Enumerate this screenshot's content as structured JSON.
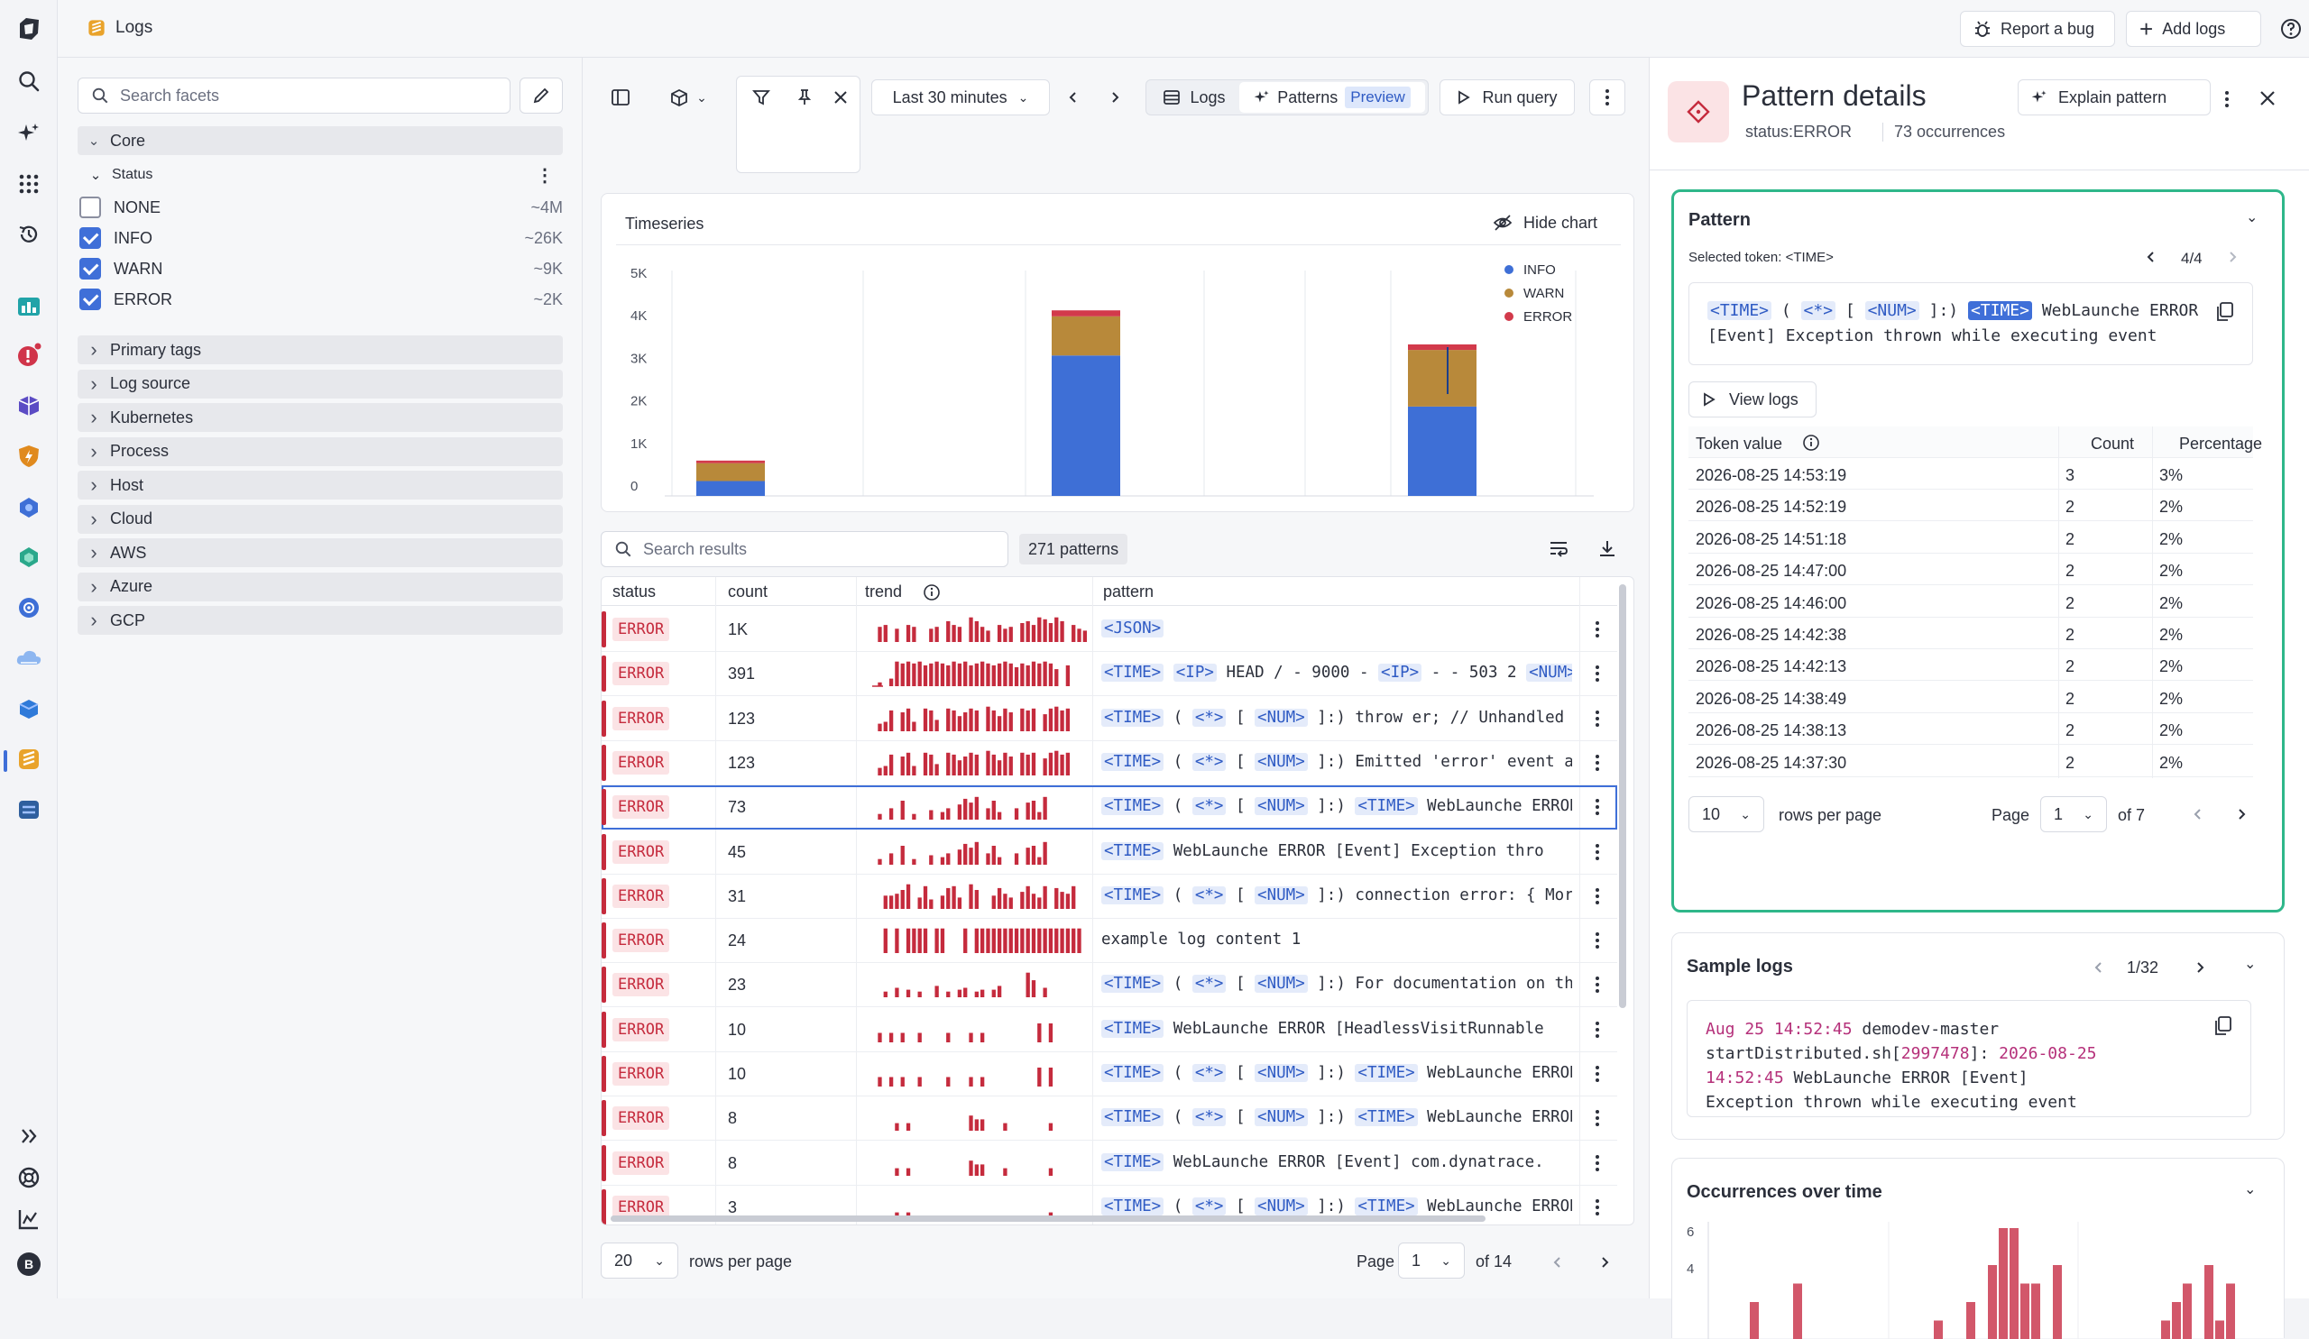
{
  "app": {
    "title": "Logs"
  },
  "topbar": {
    "report_bug": "Report a bug",
    "add_logs": "Add logs"
  },
  "facets": {
    "search_placeholder": "Search facets",
    "core_label": "Core",
    "status_label": "Status",
    "status_items": [
      {
        "label": "NONE",
        "count": "~4M",
        "checked": false
      },
      {
        "label": "INFO",
        "count": "~26K",
        "checked": true
      },
      {
        "label": "WARN",
        "count": "~9K",
        "checked": true
      },
      {
        "label": "ERROR",
        "count": "~2K",
        "checked": true
      }
    ],
    "groups": [
      "Primary tags",
      "Log source",
      "Kubernetes",
      "Process",
      "Host",
      "Cloud",
      "AWS",
      "Azure",
      "GCP"
    ]
  },
  "toolbar": {
    "timeframe": "Last 30 minutes",
    "tab_logs": "Logs",
    "tab_patterns": "Patterns",
    "preview_badge": "Preview",
    "run_query": "Run query"
  },
  "timeseries": {
    "title": "Timeseries",
    "hide_chart": "Hide chart"
  },
  "chart_data": {
    "type": "bar",
    "stacked": true,
    "ylim": [
      0,
      5000
    ],
    "yticks": [
      "5K",
      "4K",
      "3K",
      "2K",
      "1K",
      "0"
    ],
    "grid": true,
    "legend_position": "top-right",
    "series": [
      {
        "name": "INFO",
        "color": "#3e6fd6",
        "values": [
          350,
          3300,
          2100
        ]
      },
      {
        "name": "WARN",
        "color": "#b8893a",
        "values": [
          420,
          920,
          1330
        ]
      },
      {
        "name": "ERROR",
        "color": "#d23a4b",
        "values": [
          60,
          140,
          130
        ]
      }
    ]
  },
  "results": {
    "search_placeholder": "Search results",
    "pattern_count": "271 patterns",
    "columns": {
      "status": "status",
      "count": "count",
      "trend": "trend",
      "pattern": "pattern"
    },
    "rows": [
      {
        "status": "ERROR",
        "count": "1K",
        "tokens": [
          [
            "t",
            "<JSON>"
          ]
        ],
        "trend": [
          0,
          8,
          9,
          0,
          7,
          0,
          9,
          8,
          0,
          0,
          7,
          8,
          0,
          11,
          9,
          8,
          0,
          13,
          11,
          8,
          6,
          0,
          9,
          7,
          8,
          0,
          10,
          11,
          9,
          13,
          12,
          10,
          13,
          11,
          0,
          9,
          7,
          6
        ]
      },
      {
        "status": "ERROR",
        "count": "391",
        "tokens": [
          [
            "t",
            "<TIME>"
          ],
          [
            "s",
            " "
          ],
          [
            "t",
            "<IP>"
          ],
          [
            "s",
            " HEAD / - 9000 - "
          ],
          [
            "t",
            "<IP>"
          ],
          [
            "s",
            " - - 503 2 "
          ],
          [
            "t",
            "<NUM>"
          ]
        ],
        "trend": [
          0,
          2,
          0,
          4,
          13,
          12,
          13,
          12,
          13,
          11,
          12,
          13,
          12,
          11,
          13,
          12,
          13,
          11,
          12,
          13,
          12,
          11,
          12,
          13,
          12,
          10,
          12,
          11,
          13,
          12,
          13,
          12,
          9,
          0,
          11,
          0,
          0,
          0
        ]
      },
      {
        "status": "ERROR",
        "count": "123",
        "tokens": [
          [
            "t",
            "<TIME>"
          ],
          [
            "s",
            " ( "
          ],
          [
            "t",
            "<*>"
          ],
          [
            "s",
            " [ "
          ],
          [
            "t",
            "<NUM>"
          ],
          [
            "s",
            " ]:) throw er; // Unhandled"
          ]
        ],
        "trend": [
          0,
          4,
          5,
          11,
          0,
          10,
          12,
          5,
          0,
          12,
          11,
          6,
          0,
          12,
          11,
          8,
          10,
          12,
          11,
          0,
          13,
          11,
          8,
          12,
          10,
          0,
          12,
          11,
          12,
          0,
          9,
          12,
          13,
          11,
          12,
          0,
          0,
          0
        ]
      },
      {
        "status": "ERROR",
        "count": "123",
        "tokens": [
          [
            "t",
            "<TIME>"
          ],
          [
            "s",
            " ( "
          ],
          [
            "t",
            "<*>"
          ],
          [
            "s",
            " [ "
          ],
          [
            "t",
            "<NUM>"
          ],
          [
            "s",
            " ]:) Emitted 'error' event a"
          ]
        ],
        "trend": [
          0,
          4,
          5,
          11,
          0,
          10,
          12,
          5,
          0,
          12,
          11,
          6,
          0,
          12,
          11,
          8,
          10,
          12,
          11,
          0,
          13,
          11,
          8,
          12,
          10,
          0,
          12,
          11,
          12,
          0,
          9,
          12,
          13,
          11,
          12,
          0,
          0,
          0
        ]
      },
      {
        "status": "ERROR",
        "count": "73",
        "selected": true,
        "tokens": [
          [
            "t",
            "<TIME>"
          ],
          [
            "s",
            " ( "
          ],
          [
            "t",
            "<*>"
          ],
          [
            "s",
            " [ "
          ],
          [
            "t",
            "<NUM>"
          ],
          [
            "s",
            " ]:) "
          ],
          [
            "t",
            "<TIME>"
          ],
          [
            "s",
            " WebLaunche ERROR"
          ]
        ],
        "trend": [
          0,
          3,
          0,
          6,
          0,
          10,
          0,
          3,
          0,
          0,
          5,
          0,
          4,
          6,
          0,
          8,
          11,
          9,
          12,
          0,
          6,
          10,
          4,
          0,
          0,
          6,
          0,
          9,
          10,
          4,
          12,
          0,
          0,
          0,
          0,
          0,
          0,
          0
        ]
      },
      {
        "status": "ERROR",
        "count": "45",
        "tokens": [
          [
            "t",
            "<TIME>"
          ],
          [
            "s",
            " WebLaunche ERROR [Event] Exception thro"
          ]
        ],
        "trend": [
          0,
          3,
          0,
          6,
          0,
          10,
          0,
          3,
          0,
          0,
          5,
          0,
          4,
          6,
          0,
          8,
          11,
          9,
          12,
          0,
          6,
          10,
          4,
          0,
          0,
          6,
          0,
          9,
          10,
          4,
          12,
          0,
          0,
          0,
          0,
          0,
          0,
          0
        ]
      },
      {
        "status": "ERROR",
        "count": "31",
        "tokens": [
          [
            "t",
            "<TIME>"
          ],
          [
            "s",
            " ( "
          ],
          [
            "t",
            "<*>"
          ],
          [
            "s",
            " [ "
          ],
          [
            "t",
            "<NUM>"
          ],
          [
            "s",
            " ]:) connection error: { Mor"
          ]
        ],
        "trend": [
          0,
          0,
          7,
          7,
          8,
          10,
          13,
          0,
          6,
          12,
          5,
          0,
          7,
          11,
          12,
          6,
          0,
          13,
          10,
          0,
          0,
          7,
          11,
          8,
          6,
          0,
          9,
          12,
          8,
          6,
          12,
          0,
          11,
          9,
          8,
          12,
          0,
          0
        ]
      },
      {
        "status": "ERROR",
        "count": "24",
        "tokens": [
          [
            "s",
            "example log content 1"
          ]
        ],
        "trend": [
          0,
          0,
          13,
          0,
          13,
          0,
          13,
          13,
          13,
          13,
          0,
          13,
          13,
          0,
          0,
          0,
          13,
          0,
          13,
          13,
          13,
          13,
          13,
          13,
          13,
          13,
          13,
          13,
          13,
          13,
          13,
          13,
          13,
          13,
          13,
          13,
          13,
          0
        ]
      },
      {
        "status": "ERROR",
        "count": "23",
        "tokens": [
          [
            "t",
            "<TIME>"
          ],
          [
            "s",
            " ( "
          ],
          [
            "t",
            "<*>"
          ],
          [
            "s",
            " [ "
          ],
          [
            "t",
            "<NUM>"
          ],
          [
            "s",
            " ]:) For documentation on th"
          ]
        ],
        "trend": [
          0,
          0,
          3,
          0,
          5,
          0,
          4,
          0,
          3,
          0,
          0,
          6,
          0,
          3,
          0,
          4,
          5,
          0,
          3,
          4,
          0,
          4,
          6,
          0,
          0,
          0,
          0,
          13,
          9,
          0,
          5,
          0,
          0,
          0,
          0,
          0,
          0,
          0
        ]
      },
      {
        "status": "ERROR",
        "count": "10",
        "tokens": [
          [
            "t",
            "<TIME>"
          ],
          [
            "s",
            " WebLaunche ERROR [HeadlessVisitRunnable"
          ]
        ],
        "trend": [
          0,
          5,
          0,
          5,
          0,
          5,
          0,
          0,
          5,
          0,
          0,
          0,
          0,
          5,
          0,
          0,
          0,
          5,
          0,
          5,
          0,
          0,
          0,
          0,
          0,
          0,
          0,
          0,
          0,
          10,
          0,
          10,
          0,
          0,
          0,
          0,
          0,
          0
        ]
      },
      {
        "status": "ERROR",
        "count": "10",
        "tokens": [
          [
            "t",
            "<TIME>"
          ],
          [
            "s",
            " ( "
          ],
          [
            "t",
            "<*>"
          ],
          [
            "s",
            " [ "
          ],
          [
            "t",
            "<NUM>"
          ],
          [
            "s",
            " ]:) "
          ],
          [
            "t",
            "<TIME>"
          ],
          [
            "s",
            " WebLaunche ERROR"
          ]
        ],
        "trend": [
          0,
          5,
          0,
          5,
          0,
          5,
          0,
          0,
          5,
          0,
          0,
          0,
          0,
          5,
          0,
          0,
          0,
          5,
          0,
          5,
          0,
          0,
          0,
          0,
          0,
          0,
          0,
          0,
          0,
          10,
          0,
          10,
          0,
          0,
          0,
          0,
          0,
          0
        ]
      },
      {
        "status": "ERROR",
        "count": "8",
        "tokens": [
          [
            "t",
            "<TIME>"
          ],
          [
            "s",
            " ( "
          ],
          [
            "t",
            "<*>"
          ],
          [
            "s",
            " [ "
          ],
          [
            "t",
            "<NUM>"
          ],
          [
            "s",
            " ]:) "
          ],
          [
            "t",
            "<TIME>"
          ],
          [
            "s",
            " WebLaunche ERROR"
          ]
        ],
        "trend": [
          0,
          0,
          0,
          0,
          4,
          0,
          4,
          0,
          0,
          0,
          0,
          0,
          0,
          0,
          0,
          0,
          0,
          8,
          6,
          6,
          0,
          0,
          0,
          4,
          0,
          0,
          0,
          0,
          0,
          0,
          0,
          4,
          0,
          0,
          0,
          0,
          0,
          0
        ]
      },
      {
        "status": "ERROR",
        "count": "8",
        "tokens": [
          [
            "t",
            "<TIME>"
          ],
          [
            "s",
            " WebLaunche ERROR [Event] com.dynatrace."
          ]
        ],
        "trend": [
          0,
          0,
          0,
          0,
          4,
          0,
          4,
          0,
          0,
          0,
          0,
          0,
          0,
          0,
          0,
          0,
          0,
          8,
          6,
          6,
          0,
          0,
          0,
          4,
          0,
          0,
          0,
          0,
          0,
          0,
          0,
          4,
          0,
          0,
          0,
          0,
          0,
          0
        ]
      },
      {
        "status": "ERROR",
        "count": "3",
        "tokens": [
          [
            "t",
            "<TIME>"
          ],
          [
            "s",
            " ( "
          ],
          [
            "t",
            "<*>"
          ],
          [
            "s",
            " [ "
          ],
          [
            "t",
            "<NUM>"
          ],
          [
            "s",
            " ]:) "
          ],
          [
            "t",
            "<TIME>"
          ],
          [
            "s",
            " WebLaunche ERROR"
          ]
        ],
        "trend": [
          0,
          0,
          0,
          0,
          4,
          0,
          4,
          0,
          0,
          0,
          0,
          0,
          0,
          0,
          0,
          0,
          0,
          0,
          0,
          0,
          0,
          0,
          0,
          0,
          0,
          0,
          0,
          0,
          0,
          0,
          0,
          4,
          0,
          0,
          0,
          0,
          0,
          0
        ]
      }
    ],
    "rows_per_page": "20",
    "rows_per_page_label": "rows per page",
    "page_label": "Page",
    "page_value": "1",
    "page_total": "of 14"
  },
  "details": {
    "title": "Pattern details",
    "status_key": "status",
    "status_value": "ERROR",
    "occurrences": "73 occurrences",
    "explain": "Explain pattern",
    "pattern": {
      "heading": "Pattern",
      "selected_token": "Selected token: <TIME>",
      "nav": "4/4",
      "view_logs": "View logs",
      "line2": "[Event] Exception thrown while executing event",
      "columns": {
        "token": "Token value",
        "count": "Count",
        "pct": "Percentage"
      },
      "rows": [
        {
          "token": "2026-08-25 14:53:19",
          "count": "3",
          "pct": "3%"
        },
        {
          "token": "2026-08-25 14:52:19",
          "count": "2",
          "pct": "2%"
        },
        {
          "token": "2026-08-25 14:51:18",
          "count": "2",
          "pct": "2%"
        },
        {
          "token": "2026-08-25 14:47:00",
          "count": "2",
          "pct": "2%"
        },
        {
          "token": "2026-08-25 14:46:00",
          "count": "2",
          "pct": "2%"
        },
        {
          "token": "2026-08-25 14:42:38",
          "count": "2",
          "pct": "2%"
        },
        {
          "token": "2026-08-25 14:42:13",
          "count": "2",
          "pct": "2%"
        },
        {
          "token": "2026-08-25 14:38:49",
          "count": "2",
          "pct": "2%"
        },
        {
          "token": "2026-08-25 14:38:13",
          "count": "2",
          "pct": "2%"
        },
        {
          "token": "2026-08-25 14:37:30",
          "count": "2",
          "pct": "2%"
        }
      ],
      "rows_per_page": "10",
      "rows_per_page_label": "rows per page",
      "page_label": "Page",
      "page_value": "1",
      "page_total": "of 7"
    },
    "sample": {
      "heading": "Sample logs",
      "nav": "1/32",
      "line1_ts": "Aug 25 14:52:45",
      "line1_rest": " demodev-master",
      "line2_a": "startDistributed.sh[",
      "line2_pid": "2997478",
      "line2_b": "]: ",
      "line2_ts": "2026-08-25",
      "line3_ts": "14:52:45",
      "line3_rest": " WebLaunche ERROR [Event]",
      "line4": "Exception thrown while executing event"
    },
    "occurrences_chart": {
      "heading": "Occurrences over time",
      "yticks": [
        "6",
        "4"
      ],
      "values": [
        0,
        0,
        0,
        2,
        0,
        0,
        0,
        3,
        0,
        0,
        0,
        0,
        0,
        0,
        0,
        0,
        0,
        0,
        0,
        0,
        1,
        0,
        0,
        2,
        0,
        4,
        6,
        6,
        3,
        3,
        0,
        4,
        0,
        0,
        0,
        0,
        0,
        0,
        0,
        0,
        0,
        1,
        2,
        3,
        0,
        4,
        1,
        3,
        0,
        0
      ]
    }
  }
}
